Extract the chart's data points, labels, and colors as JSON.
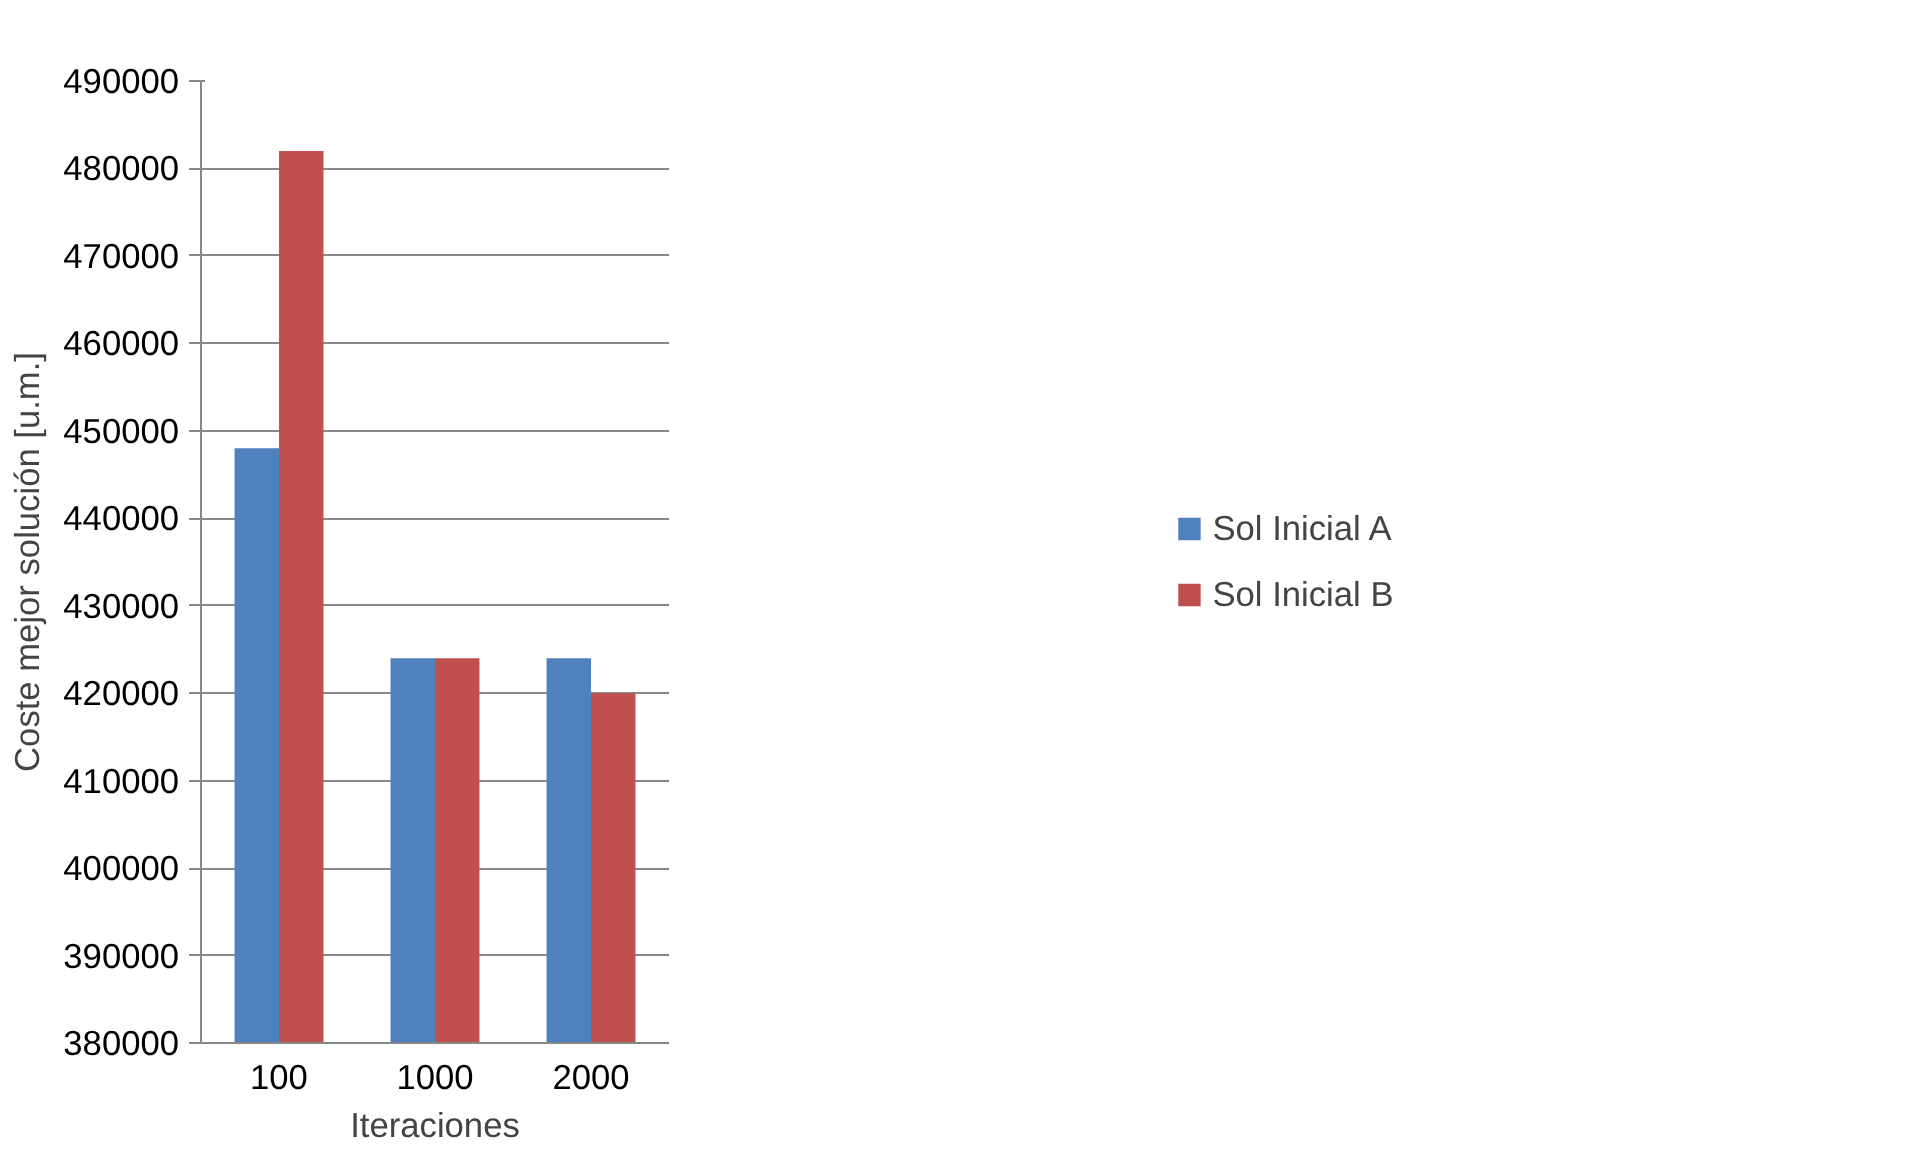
{
  "chart_data": {
    "type": "bar",
    "xlabel": "Iteraciones",
    "ylabel": "Coste mejor solución [u.m.]",
    "categories": [
      "100",
      "1000",
      "2000"
    ],
    "series": [
      {
        "name": "Sol Inicial A",
        "color": "#4f81bd",
        "values": [
          448000,
          424000,
          424000
        ]
      },
      {
        "name": "Sol Inicial B",
        "color": "#c0504d",
        "values": [
          482000,
          424000,
          420000
        ]
      }
    ],
    "ylim": [
      380000,
      490000
    ],
    "yticks": [
      380000,
      390000,
      400000,
      410000,
      420000,
      430000,
      440000,
      450000,
      460000,
      470000,
      480000,
      490000
    ],
    "grid": "y",
    "legend": "right"
  }
}
